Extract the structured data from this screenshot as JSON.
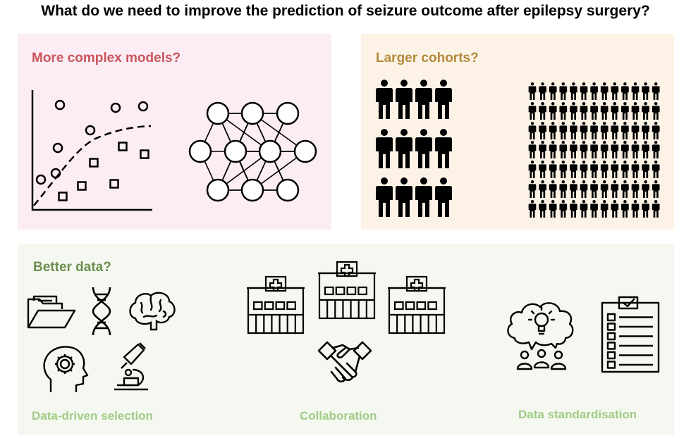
{
  "title": "What do we need to improve the prediction of seizure outcome after epilepsy surgery?",
  "panels": {
    "models": {
      "title": "More complex models?",
      "icons": [
        "scatter-plot-icon",
        "neural-network-icon"
      ]
    },
    "cohorts": {
      "title": "Larger cohorts?",
      "icons": [
        "small-cohort-people-icon",
        "large-cohort-people-icon"
      ]
    },
    "data": {
      "title": "Better data?",
      "captions": {
        "selection": "Data-driven selection",
        "collaboration": "Collaboration",
        "standardisation": "Data standardisation"
      },
      "icons": [
        "folder-icon",
        "dna-icon",
        "brain-icon",
        "head-gear-icon",
        "microscope-icon",
        "hospital-icon",
        "handshake-icon",
        "discussion-lightbulb-icon",
        "checklist-icon"
      ]
    }
  },
  "colors": {
    "models_bg": "#fcedf5",
    "models_title": "#c9565b",
    "cohorts_bg": "#fcf3e6",
    "cohorts_title": "#b4893c",
    "data_bg": "#f5f8f1",
    "data_title": "#6b8f51",
    "caption": "#9fcc84"
  }
}
